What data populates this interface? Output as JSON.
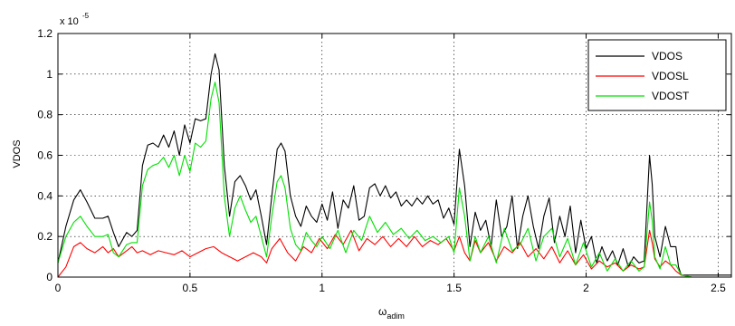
{
  "chart_data": {
    "type": "line",
    "xlabel": "ω",
    "xlabel_sub": "adim",
    "ylabel": "VDOS",
    "exponent_base": "x 10",
    "exponent_power": "-5",
    "xlim": [
      0,
      2.55
    ],
    "ylim": [
      0,
      1.2
    ],
    "xticks": [
      0,
      0.5,
      1,
      1.5,
      2,
      2.5
    ],
    "xtick_labels": [
      "0",
      "0.5",
      "1",
      "1.5",
      "2",
      "2.5"
    ],
    "yticks": [
      0,
      0.2,
      0.4,
      0.6,
      0.8,
      1,
      1.2
    ],
    "ytick_labels": [
      "0",
      "0.2",
      "0.4",
      "0.6",
      "0.8",
      "1",
      "1.2"
    ],
    "grid": true,
    "legend_position": "top-right",
    "series": [
      {
        "name": "VDOS",
        "color": "#000000",
        "x": [
          0,
          0.03,
          0.06,
          0.085,
          0.11,
          0.14,
          0.17,
          0.19,
          0.21,
          0.23,
          0.26,
          0.28,
          0.3,
          0.32,
          0.34,
          0.36,
          0.38,
          0.4,
          0.42,
          0.44,
          0.46,
          0.48,
          0.5,
          0.52,
          0.54,
          0.56,
          0.58,
          0.595,
          0.61,
          0.63,
          0.65,
          0.67,
          0.69,
          0.71,
          0.73,
          0.75,
          0.77,
          0.79,
          0.81,
          0.83,
          0.845,
          0.86,
          0.88,
          0.9,
          0.92,
          0.94,
          0.96,
          0.98,
          1.0,
          1.02,
          1.04,
          1.06,
          1.08,
          1.1,
          1.12,
          1.14,
          1.16,
          1.18,
          1.2,
          1.22,
          1.24,
          1.26,
          1.28,
          1.3,
          1.32,
          1.34,
          1.36,
          1.38,
          1.4,
          1.42,
          1.44,
          1.46,
          1.48,
          1.5,
          1.52,
          1.54,
          1.56,
          1.58,
          1.6,
          1.62,
          1.64,
          1.66,
          1.68,
          1.7,
          1.72,
          1.74,
          1.76,
          1.78,
          1.8,
          1.82,
          1.84,
          1.86,
          1.88,
          1.9,
          1.92,
          1.94,
          1.96,
          1.98,
          2.0,
          2.02,
          2.04,
          2.06,
          2.08,
          2.1,
          2.12,
          2.14,
          2.16,
          2.18,
          2.2,
          2.22,
          2.24,
          2.25,
          2.26,
          2.28,
          2.3,
          2.32,
          2.34,
          2.35,
          2.36,
          2.4,
          2.5,
          2.55
        ],
        "y": [
          0.07,
          0.25,
          0.38,
          0.43,
          0.37,
          0.29,
          0.29,
          0.3,
          0.22,
          0.15,
          0.22,
          0.2,
          0.23,
          0.55,
          0.65,
          0.66,
          0.64,
          0.7,
          0.64,
          0.72,
          0.6,
          0.75,
          0.66,
          0.78,
          0.77,
          0.78,
          1.0,
          1.1,
          1.02,
          0.55,
          0.3,
          0.47,
          0.5,
          0.45,
          0.38,
          0.43,
          0.3,
          0.16,
          0.4,
          0.63,
          0.66,
          0.62,
          0.4,
          0.3,
          0.25,
          0.35,
          0.3,
          0.27,
          0.36,
          0.28,
          0.42,
          0.24,
          0.38,
          0.34,
          0.45,
          0.28,
          0.3,
          0.44,
          0.46,
          0.4,
          0.45,
          0.39,
          0.42,
          0.35,
          0.38,
          0.35,
          0.39,
          0.36,
          0.4,
          0.36,
          0.38,
          0.29,
          0.34,
          0.26,
          0.63,
          0.45,
          0.15,
          0.32,
          0.23,
          0.28,
          0.15,
          0.38,
          0.2,
          0.25,
          0.4,
          0.14,
          0.3,
          0.4,
          0.25,
          0.14,
          0.3,
          0.39,
          0.17,
          0.3,
          0.2,
          0.35,
          0.12,
          0.28,
          0.14,
          0.2,
          0.07,
          0.15,
          0.08,
          0.13,
          0.06,
          0.14,
          0.05,
          0.1,
          0.07,
          0.08,
          0.6,
          0.46,
          0.2,
          0.1,
          0.25,
          0.15,
          0.15,
          0.05,
          0.01,
          0.01,
          0.01,
          0.01
        ]
      },
      {
        "name": "VDOSL",
        "color": "#ff0000",
        "x": [
          0,
          0.03,
          0.06,
          0.085,
          0.11,
          0.14,
          0.17,
          0.19,
          0.21,
          0.23,
          0.26,
          0.28,
          0.3,
          0.32,
          0.35,
          0.38,
          0.41,
          0.44,
          0.47,
          0.5,
          0.53,
          0.56,
          0.59,
          0.62,
          0.65,
          0.68,
          0.71,
          0.74,
          0.77,
          0.79,
          0.81,
          0.84,
          0.87,
          0.9,
          0.93,
          0.96,
          0.99,
          1.02,
          1.05,
          1.08,
          1.11,
          1.14,
          1.17,
          1.2,
          1.23,
          1.26,
          1.29,
          1.32,
          1.35,
          1.38,
          1.41,
          1.44,
          1.47,
          1.5,
          1.52,
          1.54,
          1.56,
          1.58,
          1.6,
          1.63,
          1.66,
          1.69,
          1.72,
          1.75,
          1.78,
          1.81,
          1.84,
          1.87,
          1.9,
          1.93,
          1.96,
          1.99,
          2.02,
          2.05,
          2.08,
          2.11,
          2.14,
          2.17,
          2.2,
          2.22,
          2.24,
          2.25,
          2.26,
          2.28,
          2.3,
          2.32,
          2.34,
          2.36,
          2.4,
          2.55
        ],
        "y": [
          0.0,
          0.05,
          0.15,
          0.17,
          0.14,
          0.12,
          0.15,
          0.12,
          0.14,
          0.1,
          0.13,
          0.15,
          0.12,
          0.13,
          0.11,
          0.13,
          0.12,
          0.11,
          0.13,
          0.1,
          0.12,
          0.14,
          0.15,
          0.12,
          0.1,
          0.08,
          0.1,
          0.12,
          0.1,
          0.07,
          0.14,
          0.19,
          0.12,
          0.08,
          0.15,
          0.12,
          0.19,
          0.14,
          0.21,
          0.16,
          0.23,
          0.13,
          0.19,
          0.16,
          0.2,
          0.15,
          0.19,
          0.15,
          0.2,
          0.15,
          0.18,
          0.16,
          0.19,
          0.13,
          0.2,
          0.12,
          0.08,
          0.18,
          0.12,
          0.17,
          0.08,
          0.15,
          0.12,
          0.17,
          0.1,
          0.14,
          0.09,
          0.15,
          0.07,
          0.13,
          0.06,
          0.11,
          0.04,
          0.08,
          0.05,
          0.07,
          0.03,
          0.06,
          0.04,
          0.05,
          0.23,
          0.17,
          0.09,
          0.05,
          0.08,
          0.06,
          0.03,
          0.01,
          0.0,
          0.0
        ]
      },
      {
        "name": "VDOST",
        "color": "#00e000",
        "x": [
          0,
          0.03,
          0.06,
          0.085,
          0.11,
          0.14,
          0.17,
          0.19,
          0.21,
          0.23,
          0.26,
          0.28,
          0.3,
          0.32,
          0.34,
          0.36,
          0.38,
          0.4,
          0.42,
          0.44,
          0.46,
          0.48,
          0.5,
          0.52,
          0.54,
          0.56,
          0.58,
          0.595,
          0.61,
          0.63,
          0.65,
          0.67,
          0.69,
          0.71,
          0.73,
          0.75,
          0.77,
          0.79,
          0.81,
          0.83,
          0.845,
          0.86,
          0.88,
          0.9,
          0.92,
          0.94,
          0.96,
          0.98,
          1.0,
          1.03,
          1.06,
          1.09,
          1.12,
          1.15,
          1.18,
          1.21,
          1.24,
          1.27,
          1.3,
          1.33,
          1.36,
          1.39,
          1.42,
          1.45,
          1.48,
          1.5,
          1.52,
          1.54,
          1.56,
          1.58,
          1.6,
          1.63,
          1.66,
          1.69,
          1.72,
          1.75,
          1.78,
          1.81,
          1.84,
          1.87,
          1.9,
          1.93,
          1.96,
          1.99,
          2.02,
          2.05,
          2.08,
          2.11,
          2.14,
          2.17,
          2.2,
          2.22,
          2.24,
          2.25,
          2.26,
          2.28,
          2.3,
          2.32,
          2.34,
          2.36,
          2.4,
          2.55
        ],
        "y": [
          0.07,
          0.2,
          0.27,
          0.3,
          0.25,
          0.2,
          0.2,
          0.21,
          0.12,
          0.1,
          0.16,
          0.17,
          0.17,
          0.45,
          0.53,
          0.55,
          0.56,
          0.59,
          0.54,
          0.6,
          0.5,
          0.6,
          0.52,
          0.66,
          0.64,
          0.67,
          0.88,
          0.96,
          0.86,
          0.4,
          0.2,
          0.34,
          0.4,
          0.33,
          0.27,
          0.3,
          0.2,
          0.1,
          0.3,
          0.47,
          0.5,
          0.44,
          0.24,
          0.16,
          0.13,
          0.22,
          0.18,
          0.15,
          0.2,
          0.14,
          0.23,
          0.12,
          0.23,
          0.18,
          0.3,
          0.22,
          0.27,
          0.21,
          0.24,
          0.19,
          0.23,
          0.18,
          0.2,
          0.17,
          0.2,
          0.12,
          0.44,
          0.3,
          0.08,
          0.2,
          0.12,
          0.2,
          0.07,
          0.24,
          0.13,
          0.16,
          0.24,
          0.08,
          0.2,
          0.24,
          0.1,
          0.19,
          0.06,
          0.17,
          0.05,
          0.12,
          0.03,
          0.09,
          0.03,
          0.08,
          0.03,
          0.05,
          0.37,
          0.28,
          0.1,
          0.04,
          0.15,
          0.06,
          0.06,
          0.01,
          0.0,
          0.0
        ]
      }
    ]
  }
}
